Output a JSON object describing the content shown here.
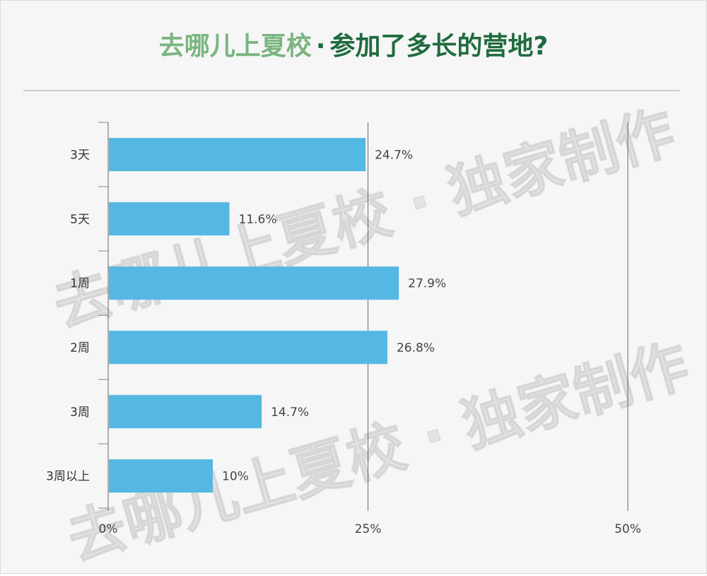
{
  "title": {
    "part1": "去哪儿上夏校",
    "separator": "·",
    "part2": "参加了多长的营地?"
  },
  "watermark": "去哪儿上夏校 · 独家制作",
  "colors": {
    "bar": "#55b8e3",
    "title_light_green": "#7ab57f",
    "title_dark_green": "#1f6b3f"
  },
  "chart_data": {
    "type": "bar",
    "orientation": "horizontal",
    "categories": [
      "3天",
      "5天",
      "1周",
      "2周",
      "3周",
      "3周以上"
    ],
    "values": [
      24.7,
      11.6,
      27.9,
      26.8,
      14.7,
      10
    ],
    "value_labels": [
      "24.7%",
      "11.6%",
      "27.9%",
      "26.8%",
      "14.7%",
      "10%"
    ],
    "x_ticks": [
      0,
      25,
      50
    ],
    "x_tick_labels": [
      "0%",
      "25%",
      "50%"
    ],
    "xlim": [
      0,
      50
    ],
    "grid": true
  }
}
